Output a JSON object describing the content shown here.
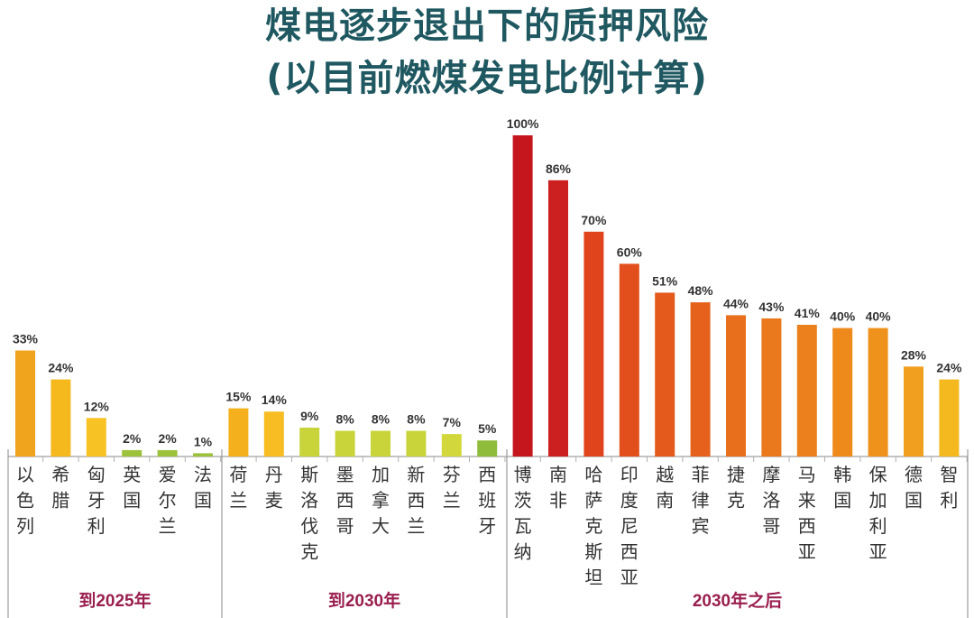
{
  "title": "煤电逐步退出下的质押风险",
  "subtitle": "(以目前燃煤发电比例计算)",
  "chart_data": {
    "type": "bar",
    "title": "煤电逐步退出下的质押风险",
    "subtitle": "(以目前燃煤发电比例计算)",
    "ylim": [
      0,
      100
    ],
    "value_suffix": "%",
    "groups": [
      {
        "label": "到2025年",
        "bars": [
          {
            "category": "以色列",
            "value": 33,
            "color": "#f0a31c"
          },
          {
            "category": "希腊",
            "value": 24,
            "color": "#f5b91e"
          },
          {
            "category": "匈牙利",
            "value": 12,
            "color": "#f7c324"
          },
          {
            "category": "英国",
            "value": 2,
            "color": "#9cc13a"
          },
          {
            "category": "爱尔兰",
            "value": 2,
            "color": "#9cc13a"
          },
          {
            "category": "法国",
            "value": 1,
            "color": "#9cc13a"
          }
        ]
      },
      {
        "label": "到2030年",
        "bars": [
          {
            "category": "荷兰",
            "value": 15,
            "color": "#f5b01e"
          },
          {
            "category": "丹麦",
            "value": 14,
            "color": "#f7bd22"
          },
          {
            "category": "斯洛伐克",
            "value": 9,
            "color": "#c8d43a"
          },
          {
            "category": "墨西哥",
            "value": 8,
            "color": "#c8d43a"
          },
          {
            "category": "加拿大",
            "value": 8,
            "color": "#c8d43a"
          },
          {
            "category": "新西兰",
            "value": 8,
            "color": "#c8d43a"
          },
          {
            "category": "芬兰",
            "value": 7,
            "color": "#d2d83c"
          },
          {
            "category": "西班牙",
            "value": 5,
            "color": "#8fbc3a"
          }
        ]
      },
      {
        "label": "2030年之后",
        "bars": [
          {
            "category": "博茨瓦纳",
            "value": 100,
            "color": "#c4161c"
          },
          {
            "category": "南非",
            "value": 86,
            "color": "#cc2020"
          },
          {
            "category": "哈萨克斯坦",
            "value": 70,
            "color": "#e0441c"
          },
          {
            "category": "印度尼西亚",
            "value": 60,
            "color": "#e24f1c"
          },
          {
            "category": "越南",
            "value": 51,
            "color": "#e4591c"
          },
          {
            "category": "菲律宾",
            "value": 48,
            "color": "#e6621c"
          },
          {
            "category": "捷克",
            "value": 44,
            "color": "#e8701c"
          },
          {
            "category": "摩洛哥",
            "value": 43,
            "color": "#ea781c"
          },
          {
            "category": "马来西亚",
            "value": 41,
            "color": "#ec801c"
          },
          {
            "category": "韩国",
            "value": 40,
            "color": "#ee8a1c"
          },
          {
            "category": "保加利亚",
            "value": 40,
            "color": "#ef921c"
          },
          {
            "category": "德国",
            "value": 28,
            "color": "#f0a01e"
          },
          {
            "category": "智利",
            "value": 24,
            "color": "#f4b91e"
          }
        ]
      }
    ]
  }
}
